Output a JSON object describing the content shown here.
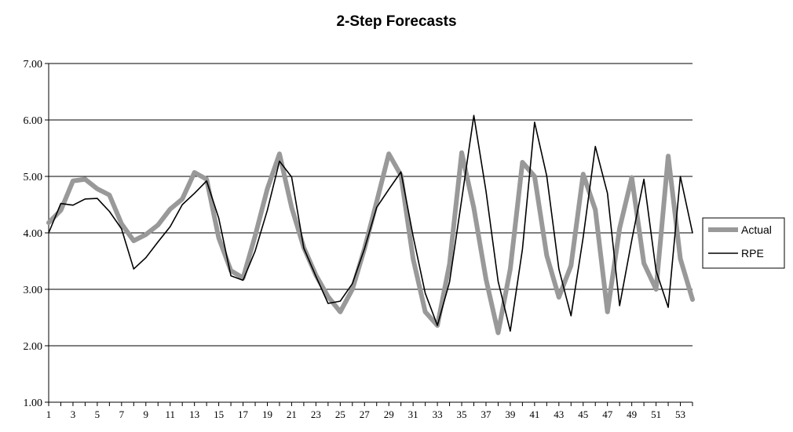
{
  "chart_data": {
    "type": "line",
    "title": "2-Step Forecasts",
    "xlabel": "",
    "ylabel": "",
    "ylim": [
      1.0,
      7.0
    ],
    "yticks": [
      "1.00",
      "2.00",
      "3.00",
      "4.00",
      "5.00",
      "6.00",
      "7.00"
    ],
    "grid": true,
    "legend_position": "right",
    "x": [
      1,
      2,
      3,
      4,
      5,
      6,
      7,
      8,
      9,
      10,
      11,
      12,
      13,
      14,
      15,
      16,
      17,
      18,
      19,
      20,
      21,
      22,
      23,
      24,
      25,
      26,
      27,
      28,
      29,
      30,
      31,
      32,
      33,
      34,
      35,
      36,
      37,
      38,
      39,
      40,
      41,
      42,
      43,
      44,
      45,
      46,
      47,
      48,
      49,
      50,
      51,
      52,
      53,
      54
    ],
    "xtick_labels": [
      "1",
      "3",
      "5",
      "7",
      "9",
      "11",
      "13",
      "15",
      "17",
      "19",
      "21",
      "23",
      "25",
      "27",
      "29",
      "31",
      "33",
      "35",
      "37",
      "39",
      "41",
      "43",
      "45",
      "47",
      "49",
      "51",
      "53"
    ],
    "series": [
      {
        "name": "Actual",
        "color": "#999999",
        "values": [
          4.18,
          4.4,
          4.92,
          4.95,
          4.78,
          4.67,
          4.16,
          3.86,
          3.97,
          4.14,
          4.42,
          4.6,
          5.07,
          4.95,
          3.91,
          3.33,
          3.2,
          3.95,
          4.78,
          5.4,
          4.45,
          3.74,
          3.25,
          2.87,
          2.6,
          3.0,
          3.72,
          4.55,
          5.4,
          5.02,
          3.54,
          2.6,
          2.36,
          3.45,
          5.42,
          4.44,
          3.18,
          2.23,
          3.36,
          5.25,
          5.0,
          3.6,
          2.86,
          3.42,
          5.04,
          4.41,
          2.6,
          4.08,
          4.98,
          3.46,
          3.0,
          5.36,
          3.54,
          2.82
        ]
      },
      {
        "name": "RPE",
        "color": "#000000",
        "values": [
          4.0,
          4.52,
          4.49,
          4.6,
          4.61,
          4.38,
          4.07,
          3.36,
          3.56,
          3.84,
          4.11,
          4.5,
          4.7,
          4.92,
          4.26,
          3.24,
          3.16,
          3.68,
          4.4,
          5.27,
          4.99,
          3.73,
          3.23,
          2.75,
          2.79,
          3.1,
          3.72,
          4.45,
          4.77,
          5.08,
          3.94,
          2.93,
          2.36,
          3.13,
          4.59,
          6.08,
          4.74,
          3.14,
          2.26,
          3.71,
          5.96,
          5.01,
          3.36,
          2.53,
          3.92,
          5.53,
          4.7,
          2.71,
          3.87,
          4.95,
          3.33,
          2.68,
          5.0,
          4.0
        ]
      }
    ]
  }
}
